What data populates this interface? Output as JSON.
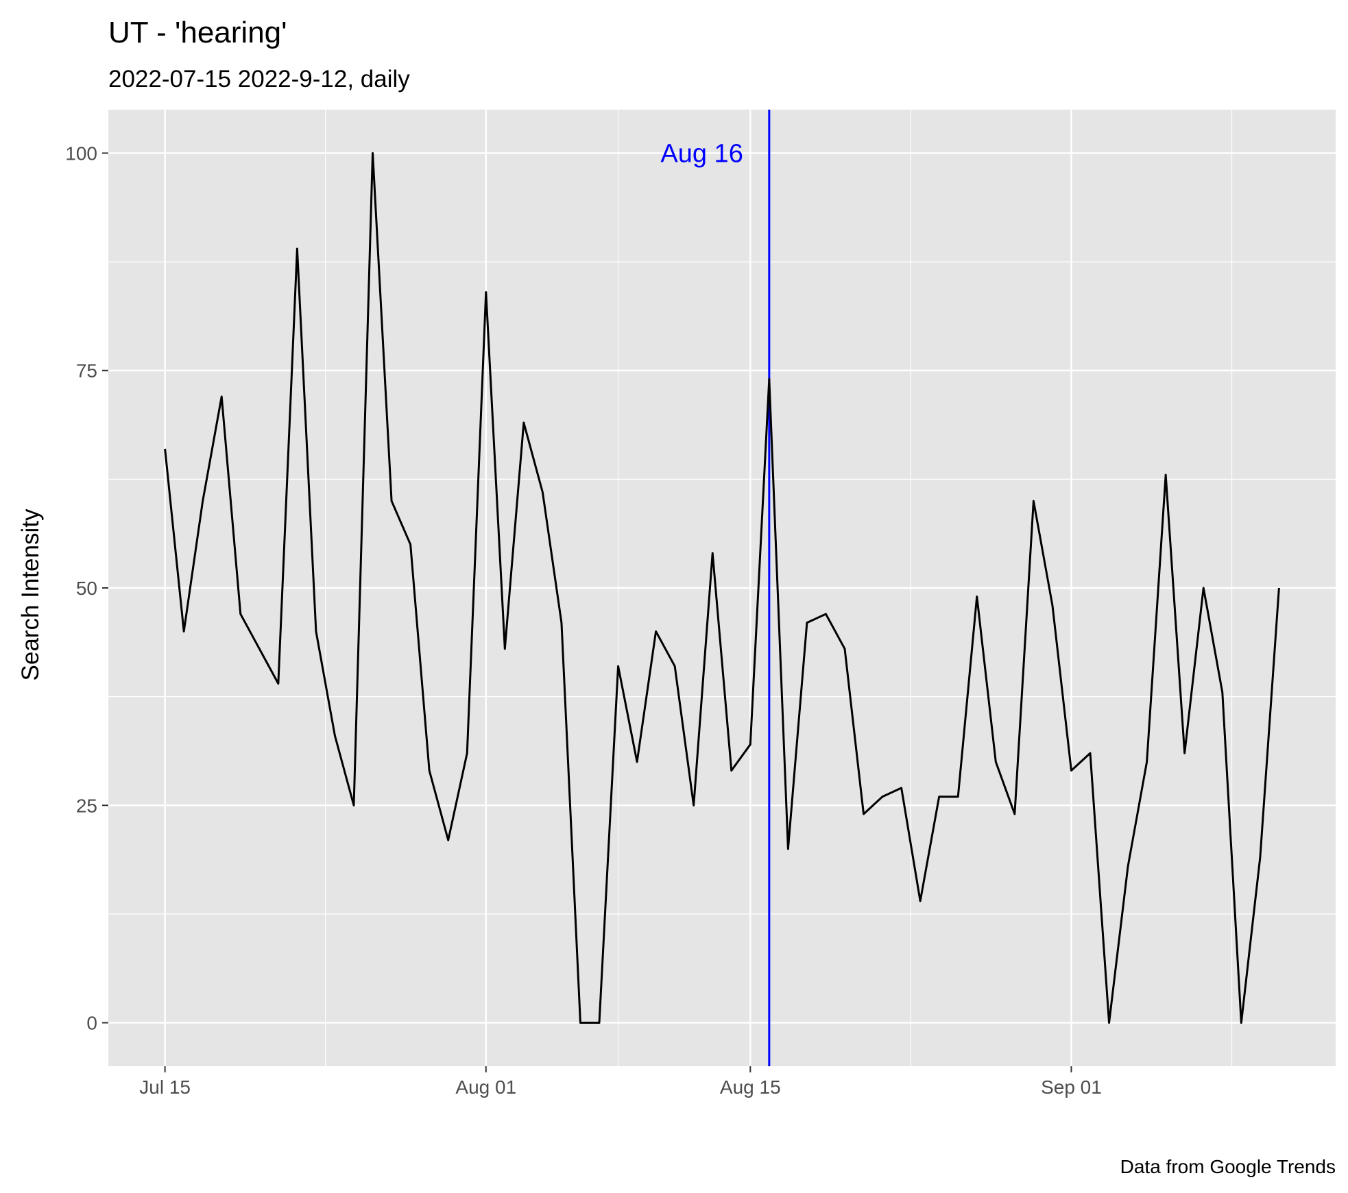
{
  "chart_data": {
    "type": "line",
    "title": "UT  - 'hearing'",
    "subtitle": "2022-07-15 2022-9-12, daily",
    "xlabel": "",
    "ylabel": "Search Intensity",
    "caption": "Data from Google Trends",
    "x_ticks": [
      {
        "date": "2022-07-15",
        "label": "Jul 15"
      },
      {
        "date": "2022-08-01",
        "label": "Aug 01"
      },
      {
        "date": "2022-08-15",
        "label": "Aug 15"
      },
      {
        "date": "2022-09-01",
        "label": "Sep 01"
      }
    ],
    "y_ticks": [
      0,
      25,
      50,
      75,
      100
    ],
    "xlim": [
      "2022-07-12",
      "2022-09-15"
    ],
    "ylim": [
      -5,
      105
    ],
    "grid": true,
    "annotation": {
      "date": "2022-08-16",
      "label": "Aug 16",
      "color": "#0000ff"
    },
    "line_color": "#000000",
    "panel_background": "#e5e5e5",
    "x": [
      "2022-07-15",
      "2022-07-16",
      "2022-07-17",
      "2022-07-18",
      "2022-07-19",
      "2022-07-20",
      "2022-07-21",
      "2022-07-22",
      "2022-07-23",
      "2022-07-24",
      "2022-07-25",
      "2022-07-26",
      "2022-07-27",
      "2022-07-28",
      "2022-07-29",
      "2022-07-30",
      "2022-07-31",
      "2022-08-01",
      "2022-08-02",
      "2022-08-03",
      "2022-08-04",
      "2022-08-05",
      "2022-08-06",
      "2022-08-07",
      "2022-08-08",
      "2022-08-09",
      "2022-08-10",
      "2022-08-11",
      "2022-08-12",
      "2022-08-13",
      "2022-08-14",
      "2022-08-15",
      "2022-08-16",
      "2022-08-17",
      "2022-08-18",
      "2022-08-19",
      "2022-08-20",
      "2022-08-21",
      "2022-08-22",
      "2022-08-23",
      "2022-08-24",
      "2022-08-25",
      "2022-08-26",
      "2022-08-27",
      "2022-08-28",
      "2022-08-29",
      "2022-08-30",
      "2022-08-31",
      "2022-09-01",
      "2022-09-02",
      "2022-09-03",
      "2022-09-04",
      "2022-09-05",
      "2022-09-06",
      "2022-09-07",
      "2022-09-08",
      "2022-09-09",
      "2022-09-10",
      "2022-09-11",
      "2022-09-12"
    ],
    "values": [
      66,
      45,
      60,
      72,
      47,
      43,
      39,
      89,
      45,
      33,
      25,
      100,
      60,
      55,
      29,
      21,
      31,
      84,
      43,
      69,
      61,
      46,
      0,
      0,
      41,
      30,
      45,
      41,
      25,
      54,
      29,
      32,
      74,
      20,
      46,
      47,
      43,
      24,
      26,
      27,
      14,
      26,
      26,
      49,
      30,
      24,
      60,
      48,
      29,
      31,
      0,
      18,
      30,
      63,
      31,
      50,
      38,
      0,
      19,
      50
    ]
  }
}
